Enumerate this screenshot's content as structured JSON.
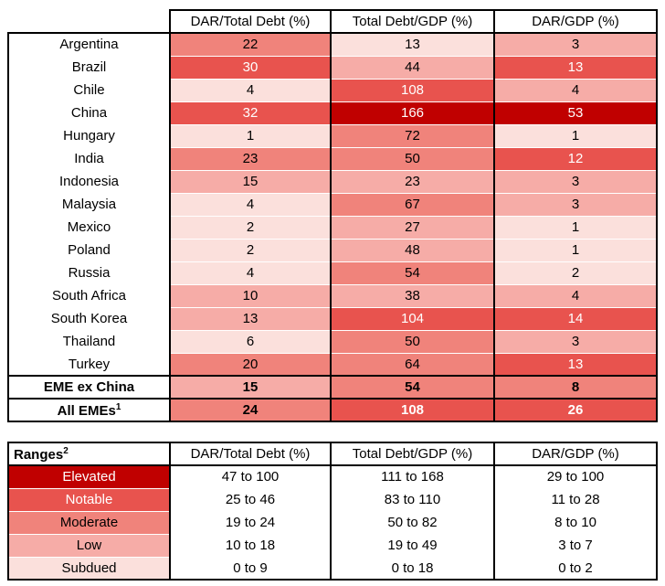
{
  "colors": {
    "background": "#FFFFFF",
    "border": "#000000",
    "levels": {
      "elevated": {
        "bg": "#C00000",
        "text": "#FFFFFF"
      },
      "notable": {
        "bg": "#E8534E",
        "text": "#FFFFFF"
      },
      "moderate": {
        "bg": "#F0837B",
        "text": "#000000"
      },
      "low": {
        "bg": "#F6ACA7",
        "text": "#000000"
      },
      "subdued": {
        "bg": "#FBE0DC",
        "text": "#000000"
      }
    }
  },
  "main_table": {
    "columns": [
      "DAR/Total Debt (%)",
      "Total Debt/GDP (%)",
      "DAR/GDP (%)"
    ],
    "rows": [
      {
        "name": "Argentina",
        "bold": false,
        "values": [
          "22",
          "13",
          "3"
        ],
        "levels": [
          "moderate",
          "subdued",
          "low"
        ]
      },
      {
        "name": "Brazil",
        "bold": false,
        "values": [
          "30",
          "44",
          "13"
        ],
        "levels": [
          "notable",
          "low",
          "notable"
        ]
      },
      {
        "name": "Chile",
        "bold": false,
        "values": [
          "4",
          "108",
          "4"
        ],
        "levels": [
          "subdued",
          "notable",
          "low"
        ]
      },
      {
        "name": "China",
        "bold": false,
        "values": [
          "32",
          "166",
          "53"
        ],
        "levels": [
          "notable",
          "elevated",
          "elevated"
        ]
      },
      {
        "name": "Hungary",
        "bold": false,
        "values": [
          "1",
          "72",
          "1"
        ],
        "levels": [
          "subdued",
          "moderate",
          "subdued"
        ]
      },
      {
        "name": "India",
        "bold": false,
        "values": [
          "23",
          "50",
          "12"
        ],
        "levels": [
          "moderate",
          "moderate",
          "notable"
        ]
      },
      {
        "name": "Indonesia",
        "bold": false,
        "values": [
          "15",
          "23",
          "3"
        ],
        "levels": [
          "low",
          "low",
          "low"
        ]
      },
      {
        "name": "Malaysia",
        "bold": false,
        "values": [
          "4",
          "67",
          "3"
        ],
        "levels": [
          "subdued",
          "moderate",
          "low"
        ]
      },
      {
        "name": "Mexico",
        "bold": false,
        "values": [
          "2",
          "27",
          "1"
        ],
        "levels": [
          "subdued",
          "low",
          "subdued"
        ]
      },
      {
        "name": "Poland",
        "bold": false,
        "values": [
          "2",
          "48",
          "1"
        ],
        "levels": [
          "subdued",
          "low",
          "subdued"
        ]
      },
      {
        "name": "Russia",
        "bold": false,
        "values": [
          "4",
          "54",
          "2"
        ],
        "levels": [
          "subdued",
          "moderate",
          "subdued"
        ]
      },
      {
        "name": "South Africa",
        "bold": false,
        "values": [
          "10",
          "38",
          "4"
        ],
        "levels": [
          "low",
          "low",
          "low"
        ]
      },
      {
        "name": "South Korea",
        "bold": false,
        "values": [
          "13",
          "104",
          "14"
        ],
        "levels": [
          "low",
          "notable",
          "notable"
        ]
      },
      {
        "name": "Thailand",
        "bold": false,
        "values": [
          "6",
          "50",
          "3"
        ],
        "levels": [
          "subdued",
          "moderate",
          "low"
        ]
      },
      {
        "name": "Turkey",
        "bold": false,
        "values": [
          "20",
          "64",
          "13"
        ],
        "levels": [
          "moderate",
          "moderate",
          "notable"
        ]
      },
      {
        "name": "EME ex China",
        "bold": true,
        "values": [
          "15",
          "54",
          "8"
        ],
        "levels": [
          "low",
          "moderate",
          "moderate"
        ]
      },
      {
        "name": "All EMEs",
        "sup": "1",
        "bold": true,
        "values": [
          "24",
          "108",
          "26"
        ],
        "levels": [
          "moderate",
          "notable",
          "notable"
        ]
      }
    ]
  },
  "ranges_table": {
    "title": "Ranges",
    "title_sup": "2",
    "columns": [
      "DAR/Total Debt (%)",
      "Total Debt/GDP (%)",
      "DAR/GDP (%)"
    ],
    "rows": [
      {
        "label": "Elevated",
        "level": "elevated",
        "values": [
          "47 to 100",
          "111 to 168",
          "29 to 100"
        ]
      },
      {
        "label": "Notable",
        "level": "notable",
        "values": [
          "25 to 46",
          "83 to 110",
          "11 to 28"
        ]
      },
      {
        "label": "Moderate",
        "level": "moderate",
        "values": [
          "19 to 24",
          "50 to 82",
          "8 to 10"
        ]
      },
      {
        "label": "Low",
        "level": "low",
        "values": [
          "10 to 18",
          "19 to 49",
          "3 to 7"
        ]
      },
      {
        "label": "Subdued",
        "level": "subdued",
        "values": [
          "0 to 9",
          "0 to 18",
          "0 to 2"
        ]
      }
    ]
  },
  "chart_data": {
    "type": "heatmap",
    "title": "",
    "columns": [
      "DAR/Total Debt (%)",
      "Total Debt/GDP (%)",
      "DAR/GDP (%)"
    ],
    "rows": [
      "Argentina",
      "Brazil",
      "Chile",
      "China",
      "Hungary",
      "India",
      "Indonesia",
      "Malaysia",
      "Mexico",
      "Poland",
      "Russia",
      "South Africa",
      "South Korea",
      "Thailand",
      "Turkey",
      "EME ex China",
      "All EMEs"
    ],
    "values": [
      [
        22,
        13,
        3
      ],
      [
        30,
        44,
        13
      ],
      [
        4,
        108,
        4
      ],
      [
        32,
        166,
        53
      ],
      [
        1,
        72,
        1
      ],
      [
        23,
        50,
        12
      ],
      [
        15,
        23,
        3
      ],
      [
        4,
        67,
        3
      ],
      [
        2,
        27,
        1
      ],
      [
        2,
        48,
        1
      ],
      [
        4,
        54,
        2
      ],
      [
        10,
        38,
        4
      ],
      [
        13,
        104,
        14
      ],
      [
        6,
        50,
        3
      ],
      [
        20,
        64,
        13
      ],
      [
        15,
        54,
        8
      ],
      [
        24,
        108,
        26
      ]
    ],
    "legend_levels": [
      {
        "label": "Elevated",
        "ranges": [
          "47 to 100",
          "111 to 168",
          "29 to 100"
        ]
      },
      {
        "label": "Notable",
        "ranges": [
          "25 to 46",
          "83 to 110",
          "11 to 28"
        ]
      },
      {
        "label": "Moderate",
        "ranges": [
          "19 to 24",
          "50 to 82",
          "8 to 10"
        ]
      },
      {
        "label": "Low",
        "ranges": [
          "10 to 18",
          "19 to 49",
          "3 to 7"
        ]
      },
      {
        "label": "Subdued",
        "ranges": [
          "0 to 9",
          "0 to 18",
          "0 to 2"
        ]
      }
    ]
  }
}
